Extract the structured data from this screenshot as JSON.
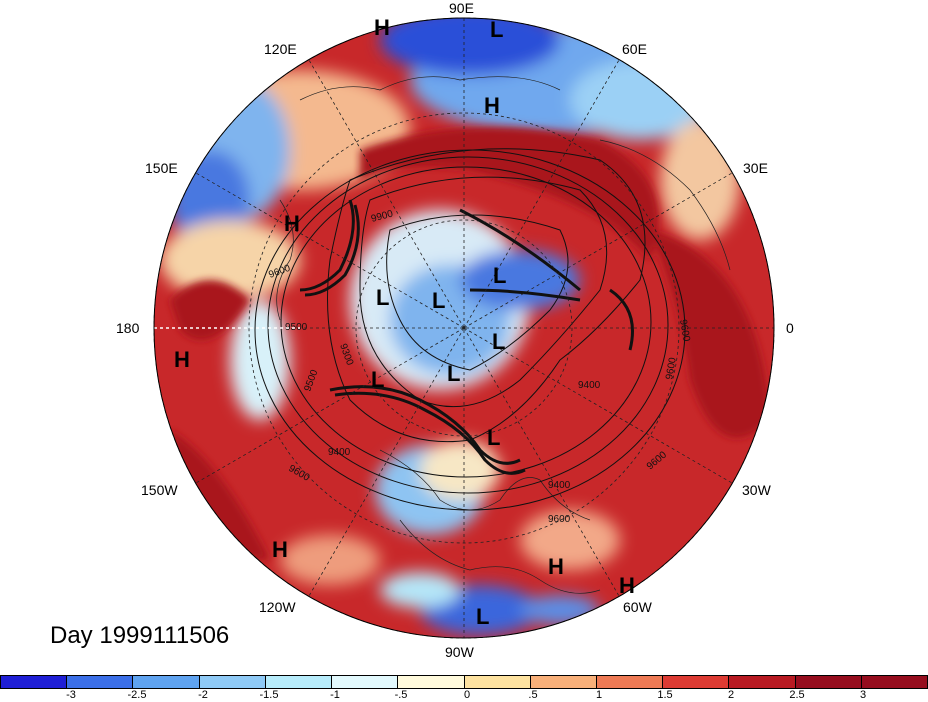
{
  "title": "Day 1999111506",
  "lon_labels": [
    {
      "text": "90E"
    },
    {
      "text": "60E"
    },
    {
      "text": "30E"
    },
    {
      "text": "0"
    },
    {
      "text": "30W"
    },
    {
      "text": "60W"
    },
    {
      "text": "90W"
    },
    {
      "text": "120W"
    },
    {
      "text": "150W"
    },
    {
      "text": "180"
    },
    {
      "text": "150E"
    },
    {
      "text": "120E"
    }
  ],
  "pressure_centers": [
    {
      "type": "H"
    },
    {
      "type": "L"
    },
    {
      "type": "H"
    },
    {
      "type": "H"
    },
    {
      "type": "L"
    },
    {
      "type": "L"
    },
    {
      "type": "L"
    },
    {
      "type": "L"
    },
    {
      "type": "H"
    },
    {
      "type": "L"
    },
    {
      "type": "L"
    },
    {
      "type": "L"
    },
    {
      "type": "H"
    },
    {
      "type": "H"
    },
    {
      "type": "H"
    },
    {
      "type": "L"
    }
  ],
  "contour_labels": [
    "9900",
    "9600",
    "9500",
    "9300",
    "9500",
    "9400",
    "9600",
    "9400",
    "9600",
    "9400",
    "9600",
    "9600",
    "9600"
  ],
  "colorbar": {
    "ticks": [
      "-3",
      "-2.5",
      "-2",
      "-1.5",
      "-1",
      "-.5",
      "0",
      ".5",
      "1",
      "1.5",
      "2",
      "2.5",
      "3"
    ],
    "colors": [
      "#1f1fd6",
      "#3b6fe8",
      "#5fa3f0",
      "#8fcaf6",
      "#b7ecfb",
      "#e2f9fd",
      "#fffadc",
      "#fde2a0",
      "#f8b07a",
      "#ee7a55",
      "#dd3b33",
      "#b81a22",
      "#960d1e"
    ]
  }
}
